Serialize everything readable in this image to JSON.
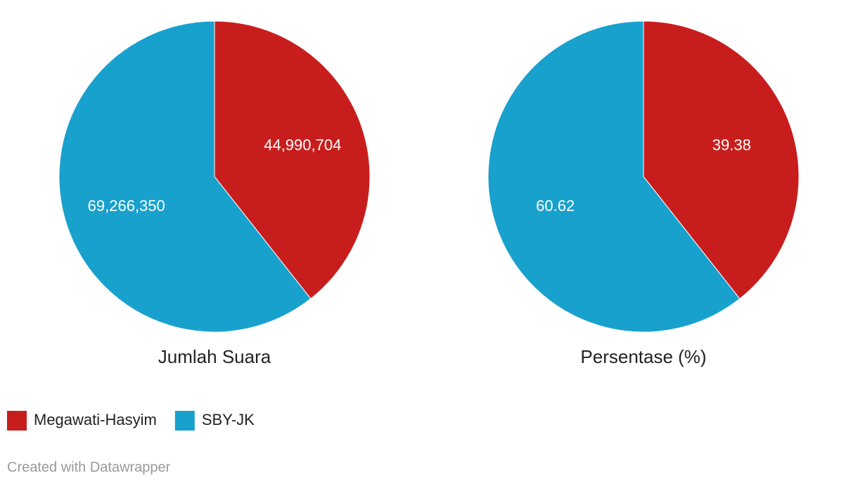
{
  "chart_data": [
    {
      "type": "pie",
      "title": "Jumlah Suara",
      "categories": [
        "Megawati-Hasyim",
        "SBY-JK"
      ],
      "values": [
        44990704,
        69266350
      ],
      "value_labels": [
        "44,990,704",
        "69,266,350"
      ],
      "colors": [
        "#c71e1d",
        "#18a1cd"
      ]
    },
    {
      "type": "pie",
      "title": "Persentase (%)",
      "categories": [
        "Megawati-Hasyim",
        "SBY-JK"
      ],
      "values": [
        39.38,
        60.62
      ],
      "colors": [
        "#c71e1d",
        "#18a1cd"
      ]
    }
  ],
  "credit": "Created with Datawrapper"
}
